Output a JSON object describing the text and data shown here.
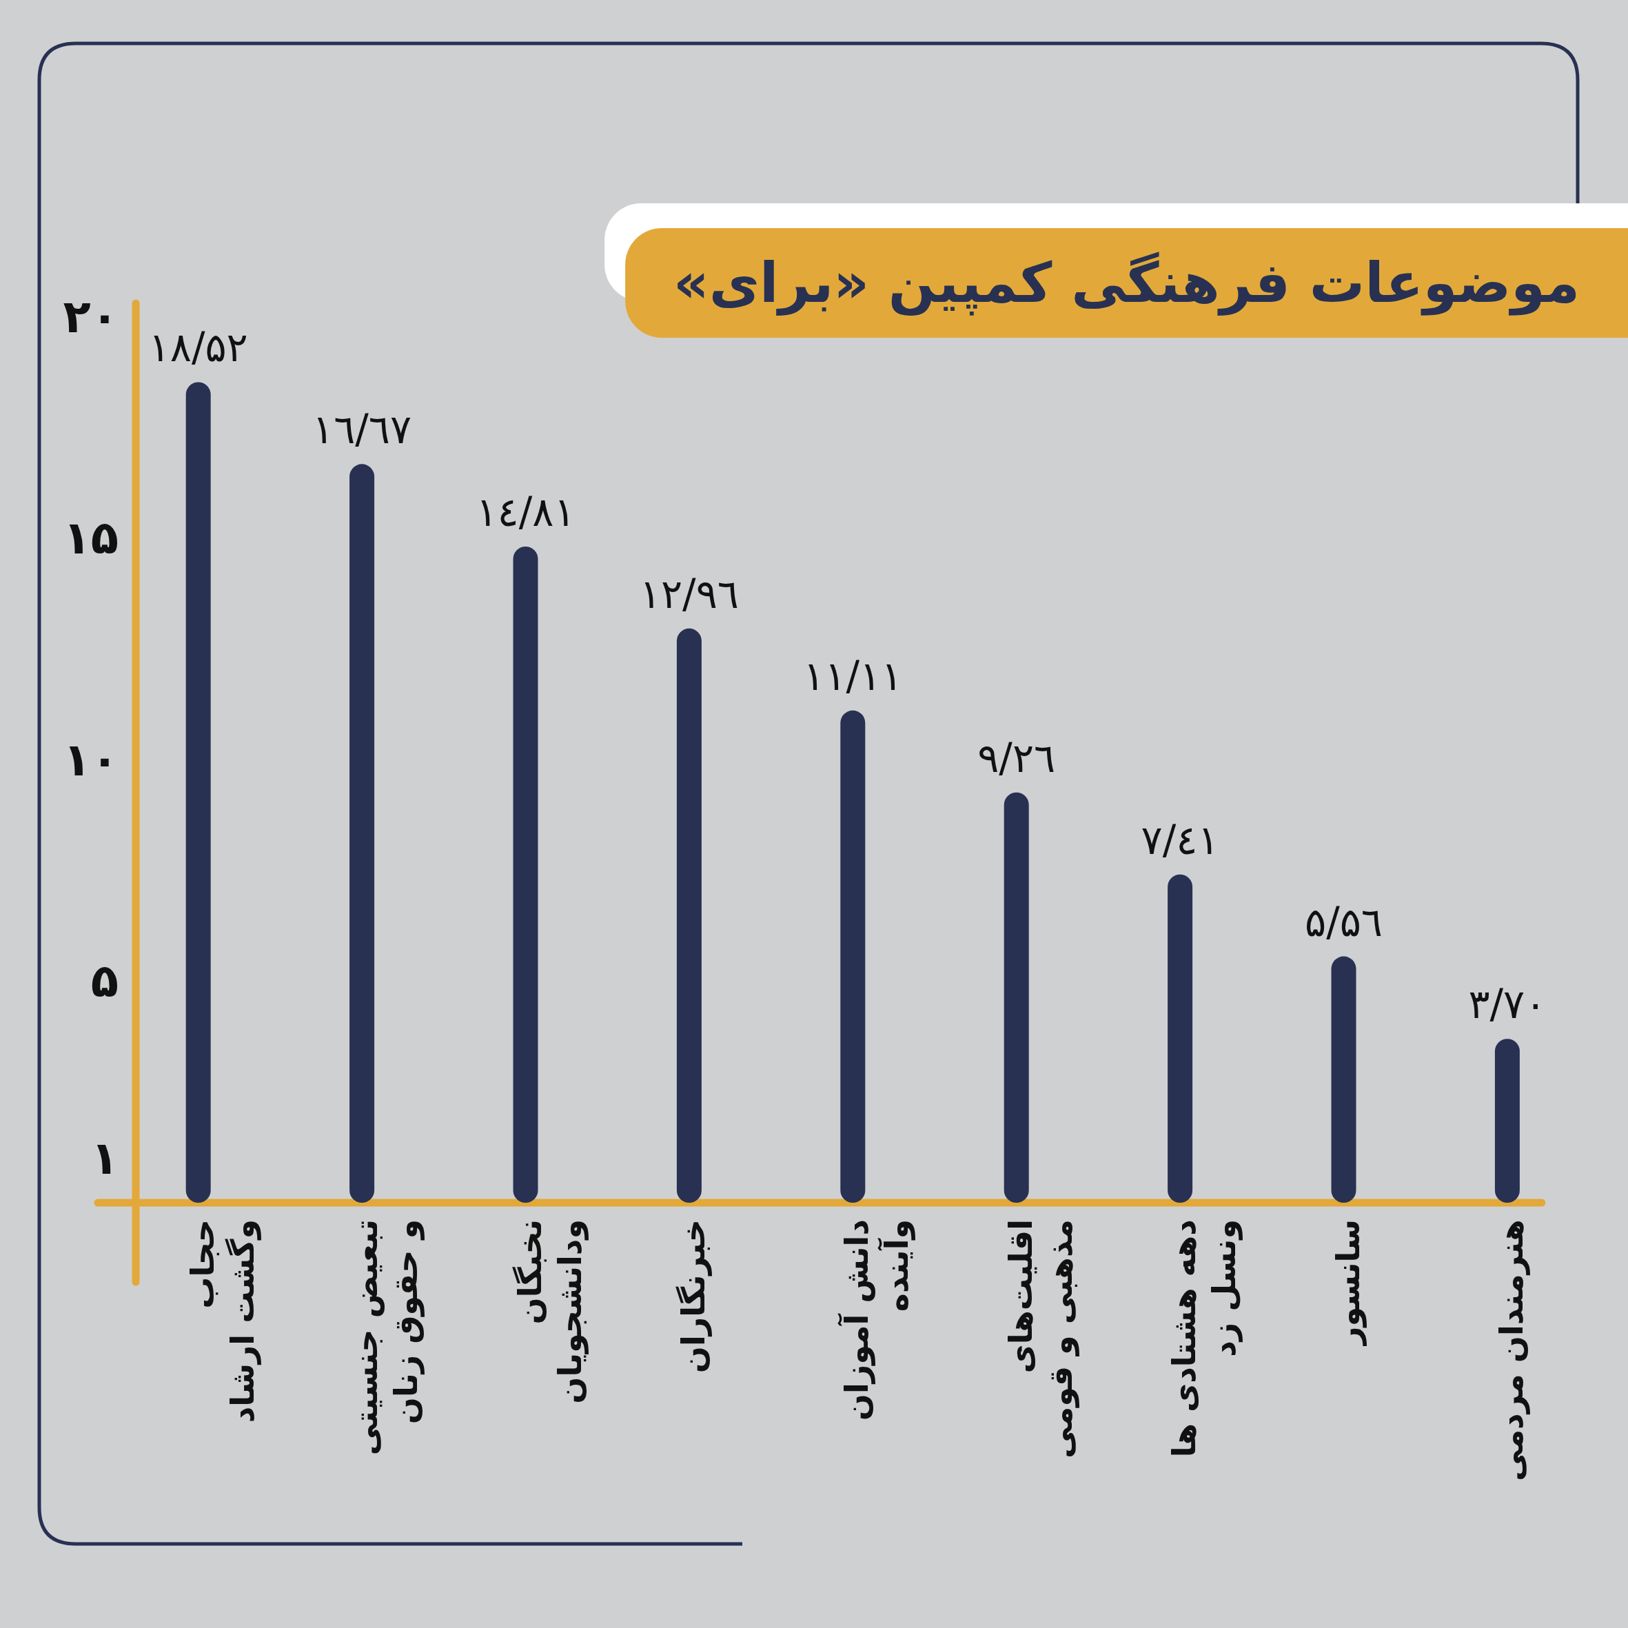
{
  "chart_data": {
    "type": "bar",
    "title": "موضوعات فرهنگی کمپین «برای»",
    "categories": [
      "حجاب\nوگشت ارشاد",
      "تبعیض جنسیتی\nو حقوق زنان",
      "نخبگان\nودانشجویان",
      "خبرنگاران",
      "دانش آموزان\nوآینده",
      "اقلیت‌های\nمذهبی و قومی",
      "دهه هشتادی ها\nونسل زد",
      "سانسور",
      "هنرمندان مردمی"
    ],
    "values": [
      18.52,
      16.67,
      14.81,
      12.96,
      11.11,
      9.26,
      7.41,
      5.56,
      3.7
    ],
    "value_labels": [
      "۱۸/۵۲",
      "۱٦/٦۷",
      "۱٤/۸۱",
      "۱۲/۹٦",
      "۱۱/۱۱",
      "۹/۲٦",
      "۷/٤۱",
      "۵/۵٦",
      "۳/۷۰"
    ],
    "color": "#283152",
    "ylim": [
      0,
      20.3
    ],
    "yticks": [
      {
        "value": 1,
        "label": "۱"
      },
      {
        "value": 5,
        "label": "۵"
      },
      {
        "value": 10,
        "label": "۱۰"
      },
      {
        "value": 15,
        "label": "۱۵"
      },
      {
        "value": 20,
        "label": "۲۰"
      }
    ]
  }
}
